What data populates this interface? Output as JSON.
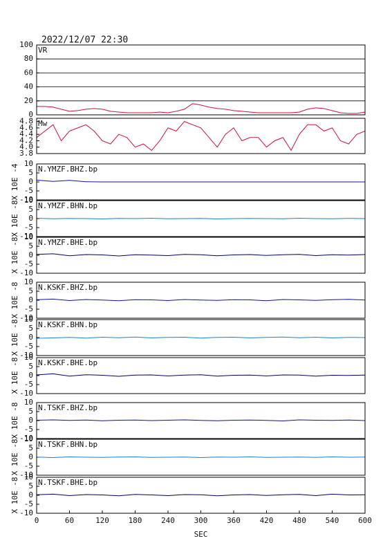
{
  "chart_data": [
    {
      "type": "line",
      "title": "2022/12/07 22:30",
      "label": "VR",
      "color": "#d0103a",
      "grid": true,
      "x": [
        0,
        15,
        30,
        45,
        60,
        75,
        90,
        105,
        120,
        135,
        150,
        165,
        180,
        195,
        210,
        225,
        240,
        255,
        270,
        285,
        300,
        315,
        330,
        345,
        360,
        375,
        390,
        405,
        420,
        435,
        450,
        465,
        480,
        495,
        510,
        525,
        540,
        555,
        570,
        585,
        600
      ],
      "values": [
        12,
        12,
        11,
        8,
        5,
        6,
        8,
        9,
        8,
        5,
        4,
        3,
        3,
        3,
        3,
        4,
        3,
        5,
        8,
        16,
        14,
        11,
        9,
        8,
        6,
        5,
        4,
        3,
        3,
        3,
        3,
        3,
        4,
        8,
        10,
        9,
        6,
        3,
        2,
        2,
        4
      ],
      "xlim": [
        0,
        600
      ],
      "ylim": [
        0,
        100
      ],
      "yticks": [
        0,
        20,
        40,
        60,
        80,
        100
      ]
    },
    {
      "type": "line",
      "label": "Mw",
      "color": "#d0103a",
      "x": [
        0,
        15,
        30,
        45,
        60,
        75,
        90,
        105,
        120,
        135,
        150,
        165,
        180,
        195,
        210,
        225,
        240,
        255,
        270,
        285,
        300,
        315,
        330,
        345,
        360,
        375,
        390,
        405,
        420,
        435,
        450,
        465,
        480,
        495,
        510,
        525,
        540,
        555,
        570,
        585,
        600
      ],
      "values": [
        4.3,
        4.5,
        4.7,
        4.2,
        4.5,
        4.6,
        4.7,
        4.5,
        4.2,
        4.1,
        4.4,
        4.3,
        4.0,
        4.1,
        3.9,
        4.2,
        4.6,
        4.5,
        4.8,
        4.7,
        4.6,
        4.3,
        4.0,
        4.4,
        4.6,
        4.2,
        4.3,
        4.3,
        4.0,
        4.2,
        4.3,
        3.9,
        4.4,
        4.7,
        4.7,
        4.5,
        4.6,
        4.2,
        4.1,
        4.4,
        4.5
      ],
      "xlim": [
        0,
        600
      ],
      "ylim": [
        3.8,
        4.9
      ],
      "yticks": [
        {
          "value": 3.8,
          "label": "3.8"
        },
        {
          "value": 4.0,
          "label": "4.0"
        },
        4.2,
        4.4,
        4.6,
        4.8
      ]
    },
    {
      "type": "line",
      "label": "N.YMZF.BHZ.bp",
      "ylabel": "X 10E -4",
      "color": "#1010a0",
      "x": [
        0,
        30,
        60,
        90,
        120,
        150,
        180,
        210,
        240,
        270,
        300,
        330,
        360,
        390,
        420,
        450,
        480,
        510,
        540,
        570,
        600
      ],
      "values": [
        1,
        0.3,
        0.9,
        0.1,
        0,
        0,
        0,
        0,
        0,
        0,
        0,
        0,
        0,
        0,
        0,
        0,
        0,
        0,
        0,
        0,
        0
      ],
      "xlim": [
        0,
        600
      ],
      "ylim": [
        -10,
        10
      ],
      "yticks": [
        -10,
        -5,
        0,
        5,
        10
      ]
    },
    {
      "type": "line",
      "label": "N.YMZF.BHN.bp",
      "ylabel": "X 10E -8",
      "color": "#1e7fd0",
      "x": [
        0,
        30,
        60,
        90,
        120,
        150,
        180,
        210,
        240,
        270,
        300,
        330,
        360,
        390,
        420,
        450,
        480,
        510,
        540,
        570,
        600
      ],
      "values": [
        0.2,
        -0.1,
        0.1,
        0,
        -0.2,
        0.1,
        0,
        0.2,
        -0.1,
        0,
        0.1,
        -0.2,
        0,
        0.1,
        0,
        -0.1,
        0.2,
        0,
        -0.1,
        0.1,
        0
      ],
      "xlim": [
        0,
        600
      ],
      "ylim": [
        -10,
        10
      ],
      "yticks": [
        -10,
        -5,
        0,
        5,
        10
      ]
    },
    {
      "type": "line",
      "label": "N.YMZF.BHE.bp",
      "ylabel": "X 10E -8",
      "color": "#000060",
      "x": [
        0,
        30,
        60,
        90,
        120,
        150,
        180,
        210,
        240,
        270,
        300,
        330,
        360,
        390,
        420,
        450,
        480,
        510,
        540,
        570,
        600
      ],
      "values": [
        0.5,
        0.8,
        -0.3,
        0.4,
        0.2,
        -0.4,
        0.3,
        0.1,
        -0.2,
        0.5,
        0.3,
        -0.3,
        0.2,
        0.4,
        -0.1,
        0.3,
        0.5,
        -0.2,
        0.3,
        0.1,
        0.4
      ],
      "xlim": [
        0,
        600
      ],
      "ylim": [
        -10,
        10
      ],
      "yticks": [
        -10,
        -5,
        0,
        5,
        10
      ]
    },
    {
      "type": "line",
      "label": "N.KSKF.BHZ.bp",
      "ylabel": "X 10E -8",
      "color": "#1010a0",
      "x": [
        0,
        30,
        60,
        90,
        120,
        150,
        180,
        210,
        240,
        270,
        300,
        330,
        360,
        390,
        420,
        450,
        480,
        510,
        540,
        570,
        600
      ],
      "values": [
        0.3,
        0.6,
        -0.2,
        0.4,
        0.1,
        -0.3,
        0.3,
        0.2,
        -0.2,
        0.4,
        0.1,
        -0.1,
        0.3,
        0.2,
        -0.3,
        0.4,
        0.2,
        -0.1,
        0.3,
        0.5,
        0.1
      ],
      "xlim": [
        0,
        600
      ],
      "ylim": [
        -10,
        10
      ],
      "yticks": [
        -10,
        -5,
        0,
        5,
        10
      ]
    },
    {
      "type": "line",
      "label": "N.KSKF.BHN.bp",
      "ylabel": "X 10E -8",
      "color": "#1e7fd0",
      "x": [
        0,
        30,
        60,
        90,
        120,
        150,
        180,
        210,
        240,
        270,
        300,
        330,
        360,
        390,
        420,
        450,
        480,
        510,
        540,
        570,
        600
      ],
      "values": [
        -0.4,
        -0.2,
        0.1,
        -0.3,
        0.2,
        -0.1,
        0.3,
        -0.2,
        0.1,
        0.2,
        -0.3,
        0.1,
        0.2,
        -0.2,
        0.1,
        0.3,
        -0.1,
        0.2,
        -0.2,
        0.1,
        0
      ],
      "xlim": [
        0,
        600
      ],
      "ylim": [
        -10,
        10
      ],
      "yticks": [
        -10,
        -5,
        0,
        5,
        10
      ]
    },
    {
      "type": "line",
      "label": "N.KSKF.BHE.bp",
      "ylabel": "X 10E -8",
      "color": "#000060",
      "x": [
        0,
        30,
        60,
        90,
        120,
        150,
        180,
        210,
        240,
        270,
        300,
        330,
        360,
        390,
        420,
        450,
        480,
        510,
        540,
        570,
        600
      ],
      "values": [
        0.4,
        1,
        -0.3,
        0.5,
        0.2,
        -0.4,
        0.3,
        0.4,
        -0.2,
        0.3,
        0.5,
        -0.3,
        0.2,
        0.3,
        -0.2,
        0.4,
        0.3,
        -0.3,
        0.2,
        0.1,
        0.3
      ],
      "xlim": [
        0,
        600
      ],
      "ylim": [
        -10,
        10
      ],
      "yticks": [
        -10,
        -5,
        0,
        5,
        10
      ]
    },
    {
      "type": "line",
      "label": "N.TSKF.BHZ.bp",
      "ylabel": "X 10E -8",
      "color": "#1010a0",
      "x": [
        0,
        30,
        60,
        90,
        120,
        150,
        180,
        210,
        240,
        270,
        300,
        330,
        360,
        390,
        420,
        450,
        480,
        510,
        540,
        570,
        600
      ],
      "values": [
        0.2,
        0.4,
        0.1,
        0.3,
        -0.1,
        0.2,
        0.3,
        0,
        0.2,
        0.4,
        0.1,
        -0.1,
        0.2,
        0.3,
        0.1,
        -0.2,
        0.4,
        0.2,
        0.1,
        0.3,
        0
      ],
      "xlim": [
        0,
        600
      ],
      "ylim": [
        -10,
        10
      ],
      "yticks": [
        -10,
        -5,
        0,
        5,
        10
      ]
    },
    {
      "type": "line",
      "label": "N.TSKF.BHN.bp",
      "ylabel": "X 10E -8",
      "color": "#1e7fd0",
      "x": [
        0,
        30,
        60,
        90,
        120,
        150,
        180,
        210,
        240,
        270,
        300,
        330,
        360,
        390,
        420,
        450,
        480,
        510,
        540,
        570,
        600
      ],
      "values": [
        0.1,
        -0.2,
        0.2,
        0,
        -0.1,
        0.1,
        0.2,
        -0.1,
        0,
        0.1,
        -0.2,
        0.1,
        0,
        0.2,
        -0.1,
        0,
        0.1,
        -0.1,
        0.2,
        0,
        0.1
      ],
      "xlim": [
        0,
        600
      ],
      "ylim": [
        -10,
        10
      ],
      "yticks": [
        -10,
        -5,
        0,
        5,
        10
      ]
    },
    {
      "type": "line",
      "label": "N.TSKF.BHE.bp",
      "ylabel": "X 10E -8",
      "xlabel": "SEC",
      "color": "#000060",
      "x": [
        0,
        30,
        60,
        90,
        120,
        150,
        180,
        210,
        240,
        270,
        300,
        330,
        360,
        390,
        420,
        450,
        480,
        510,
        540,
        570,
        600
      ],
      "values": [
        0.3,
        0.6,
        -0.2,
        0.4,
        0.2,
        -0.3,
        0.5,
        0.2,
        -0.2,
        0.4,
        0.3,
        -0.3,
        0.2,
        0.4,
        -0.1,
        0.3,
        0.5,
        -0.2,
        0.6,
        0.2,
        0.3
      ],
      "xlim": [
        0,
        600
      ],
      "ylim": [
        -10,
        10
      ],
      "yticks": [
        -10,
        -5,
        0,
        5,
        10
      ],
      "xticks": [
        0,
        60,
        120,
        180,
        240,
        300,
        360,
        420,
        480,
        540,
        600
      ]
    }
  ]
}
